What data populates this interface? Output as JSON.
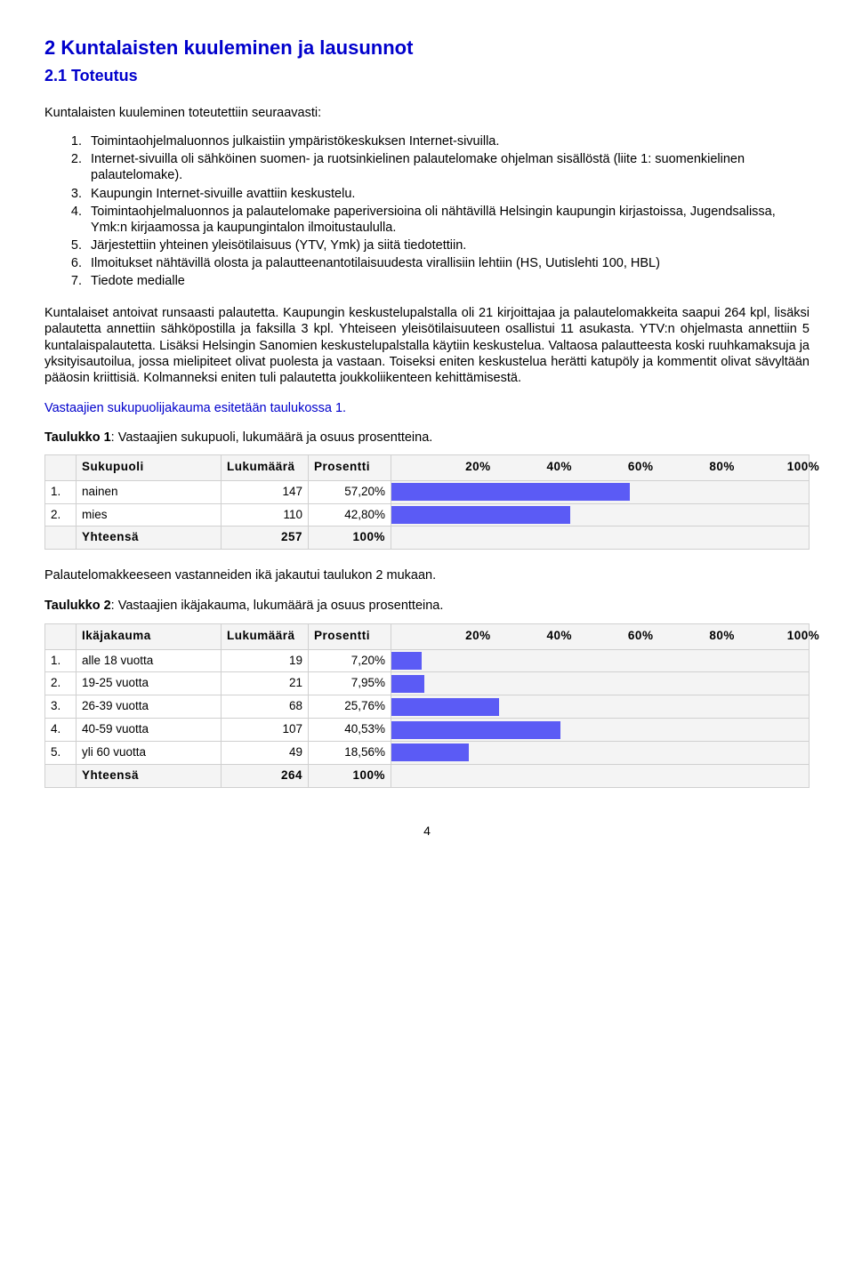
{
  "heading": "2 Kuntalaisten kuuleminen ja lausunnot",
  "subheading": "2.1 Toteutus",
  "intro": "Kuntalaisten kuuleminen toteutettiin seuraavasti:",
  "list": [
    "Toimintaohjelmaluonnos julkaistiin ympäristökeskuksen Internet-sivuilla.",
    "Internet-sivuilla oli sähköinen suomen- ja ruotsinkielinen palautelomake ohjelman sisällöstä (liite 1: suomenkielinen palautelomake).",
    "Kaupungin Internet-sivuille avattiin keskustelu.",
    "Toimintaohjelmaluonnos ja palautelomake paperiversioina oli nähtävillä Helsingin kaupungin kirjastoissa, Jugendsalissa, Ymk:n kirjaamossa ja kaupungintalon ilmoitustaululla.",
    "Järjestettiin yhteinen yleisötilaisuus (YTV, Ymk) ja siitä tiedotettiin.",
    "Ilmoitukset nähtävillä olosta ja palautteenantotilaisuudesta virallisiin lehtiin (HS, Uutislehti 100, HBL)",
    "Tiedote medialle"
  ],
  "para1": "Kuntalaiset antoivat runsaasti palautetta. Kaupungin keskustelupalstalla oli 21 kirjoittajaa ja palautelomakkeita saapui 264 kpl, lisäksi palautetta annettiin sähköpostilla ja faksilla 3 kpl. Yhteiseen yleisötilaisuuteen osallistui 11 asukasta. YTV:n ohjelmasta annettiin 5 kuntalaispalautetta. Lisäksi Helsingin Sanomien keskustelupalstalla käytiin keskustelua. Valtaosa palautteesta koski ruuhkamaksuja ja yksityisautoilua, jossa mielipiteet olivat puolesta ja vastaan. Toiseksi eniten keskustelua herätti katupöly ja kommentit olivat sävyltään pääosin kriittisiä. Kolmanneksi eniten tuli palautetta joukkoliikenteen kehittämisestä.",
  "para2": "Vastaajien sukupuolijakauma esitetään taulukossa 1.",
  "table1": {
    "caption_bold": "Taulukko 1",
    "caption_rest": ": Vastaajien sukupuoli, lukumäärä ja osuus prosentteina.",
    "headers": {
      "name": "Sukupuoli",
      "count": "Lukumäärä",
      "pct": "Prosentti"
    },
    "axis": [
      "20%",
      "40%",
      "60%",
      "80%",
      "100%"
    ],
    "rows": [
      {
        "idx": "1.",
        "name": "nainen",
        "count": "147",
        "pct": "57,20%",
        "bar": 57.2
      },
      {
        "idx": "2.",
        "name": "mies",
        "count": "110",
        "pct": "42,80%",
        "bar": 42.8
      }
    ],
    "total": {
      "label": "Yhteensä",
      "count": "257",
      "pct": "100%"
    }
  },
  "para3": "Palautelomakkeeseen vastanneiden ikä jakautui taulukon 2 mukaan.",
  "table2": {
    "caption_bold": "Taulukko 2",
    "caption_rest": ": Vastaajien ikäjakauma, lukumäärä ja osuus prosentteina.",
    "headers": {
      "name": "Ikäjakauma",
      "count": "Lukumäärä",
      "pct": "Prosentti"
    },
    "axis": [
      "20%",
      "40%",
      "60%",
      "80%",
      "100%"
    ],
    "rows": [
      {
        "idx": "1.",
        "name": "alle 18 vuotta",
        "count": "19",
        "pct": "7,20%",
        "bar": 7.2
      },
      {
        "idx": "2.",
        "name": "19-25 vuotta",
        "count": "21",
        "pct": "7,95%",
        "bar": 7.95
      },
      {
        "idx": "3.",
        "name": "26-39 vuotta",
        "count": "68",
        "pct": "25,76%",
        "bar": 25.76
      },
      {
        "idx": "4.",
        "name": "40-59 vuotta",
        "count": "107",
        "pct": "40,53%",
        "bar": 40.53
      },
      {
        "idx": "5.",
        "name": "yli 60 vuotta",
        "count": "49",
        "pct": "18,56%",
        "bar": 18.56
      }
    ],
    "total": {
      "label": "Yhteensä",
      "count": "264",
      "pct": "100%"
    }
  },
  "colors": {
    "heading": "#0000cc",
    "bar": "#5b5bf5",
    "track": "#f4f4f4",
    "border": "#d0d0d0"
  },
  "page_number": "4"
}
